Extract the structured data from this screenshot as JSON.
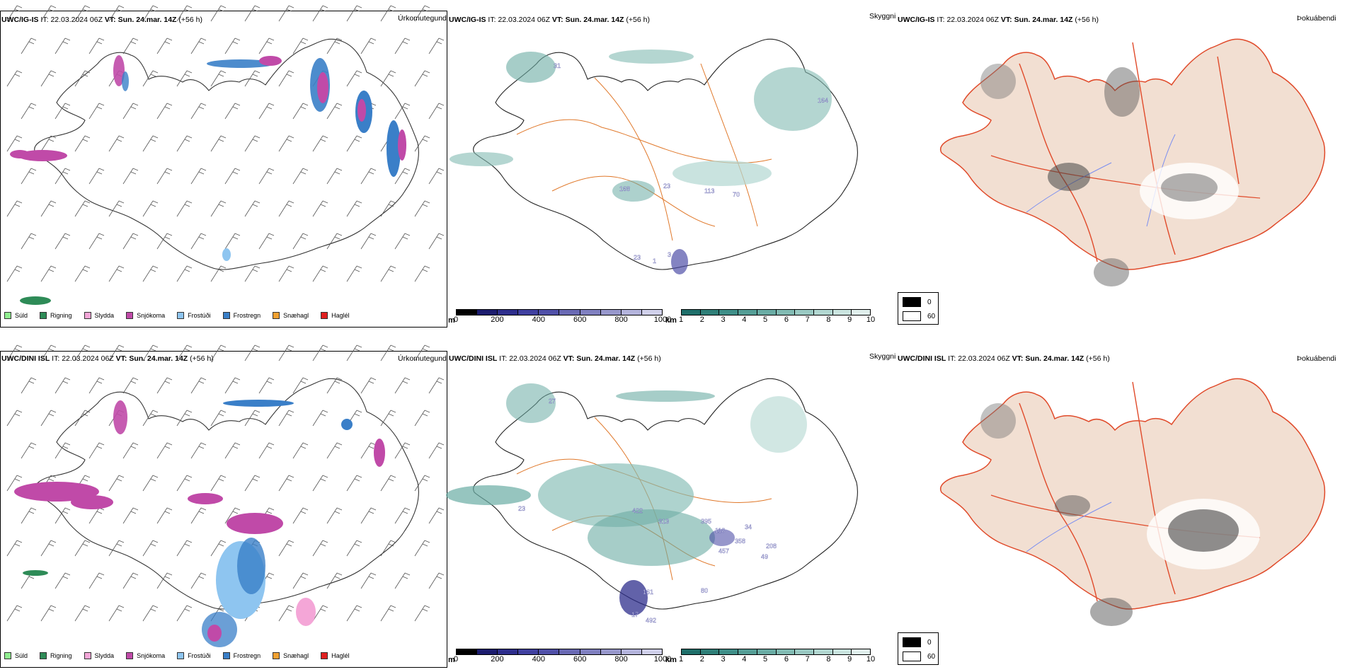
{
  "rows": [
    {
      "model": "UWC/IG-IS",
      "it_label": "IT:",
      "it_value": "22.03.2024 06Z",
      "vt_label": "VT:",
      "vt_value": "Sun. 24.mar. 14Z",
      "lead": "(+56 h)"
    },
    {
      "model": "UWC/DINI ISL",
      "it_label": "IT:",
      "it_value": "22.03.2024 06Z",
      "vt_label": "VT:",
      "vt_value": "Sun. 24.mar. 14Z",
      "lead": "(+56 h)"
    }
  ],
  "panel_titles": {
    "precip_type": "Úrkomutegund",
    "visibility": "Skyggni",
    "fog": "Þokuábendi"
  },
  "precip_legend": [
    {
      "label": "Súld",
      "color": "#90ee90"
    },
    {
      "label": "Rigning",
      "color": "#2e8b57"
    },
    {
      "label": "Slydda",
      "color": "#f4a6d7"
    },
    {
      "label": "Snjókoma",
      "color": "#c04aa8"
    },
    {
      "label": "Frostúði",
      "color": "#8ec5f0"
    },
    {
      "label": "Frostregn",
      "color": "#3a7fc8"
    },
    {
      "label": "Snæhagl",
      "color": "#f0a030"
    },
    {
      "label": "Haglél",
      "color": "#e02020"
    }
  ],
  "vis_scale_m": {
    "unit": "m",
    "ticks": [
      "0",
      "200",
      "400",
      "600",
      "800",
      "1000"
    ],
    "colors": [
      "#000000",
      "#1c1c6e",
      "#2e2e8c",
      "#4040a0",
      "#5050a8",
      "#6a6ab4",
      "#8080c0",
      "#9898cc",
      "#b4b4dc",
      "#d0d0ea"
    ]
  },
  "vis_scale_km": {
    "unit": "km",
    "ticks": [
      "1",
      "2",
      "3",
      "4",
      "5",
      "6",
      "7",
      "8",
      "9",
      "10"
    ],
    "colors": [
      "#1f6f6a",
      "#2f7f78",
      "#3f8f88",
      "#559e96",
      "#6aaca4",
      "#82bbb3",
      "#9ac9c2",
      "#b2d7d1",
      "#cae4df",
      "#e0efec"
    ]
  },
  "fog_legend": [
    {
      "label": "0",
      "color": "#000000"
    },
    {
      "label": "60",
      "color": "#ffffff"
    }
  ],
  "vis_labels_top": [
    "31",
    "164",
    "168",
    "23",
    "113",
    "70",
    "1",
    "3",
    "23"
  ],
  "vis_labels_bottom": [
    "27",
    "422",
    "313",
    "395",
    "118",
    "34",
    "358",
    "457",
    "208",
    "49",
    "161",
    "80",
    "492",
    "17",
    "23"
  ]
}
